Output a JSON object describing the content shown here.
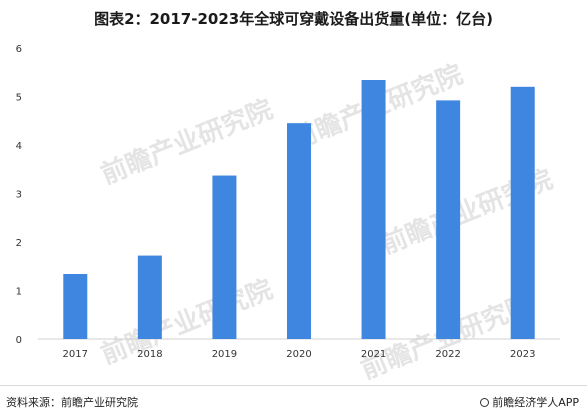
{
  "chart_data": {
    "type": "bar",
    "title": "图表2：2017-2023年全球可穿戴设备出货量(单位：亿台)",
    "categories": [
      "2017",
      "2018",
      "2019",
      "2020",
      "2021",
      "2022",
      "2023"
    ],
    "values": [
      1.34,
      1.72,
      3.37,
      4.45,
      5.34,
      4.92,
      5.2
    ],
    "ylim": [
      0,
      6
    ],
    "yticks": [
      0,
      1,
      2,
      3,
      4,
      5,
      6
    ],
    "xlabel": "",
    "ylabel": "",
    "grid": false,
    "bar_color": "#3f86e0"
  },
  "watermark": {
    "text": "前瞻产业研究院",
    "icon": "qianzhan-logo-icon"
  },
  "footer": {
    "source": "资料来源：前瞻产业研究院",
    "brand": "前瞻经济学人APP",
    "brand_icon": "qianzhan-logo-icon"
  }
}
